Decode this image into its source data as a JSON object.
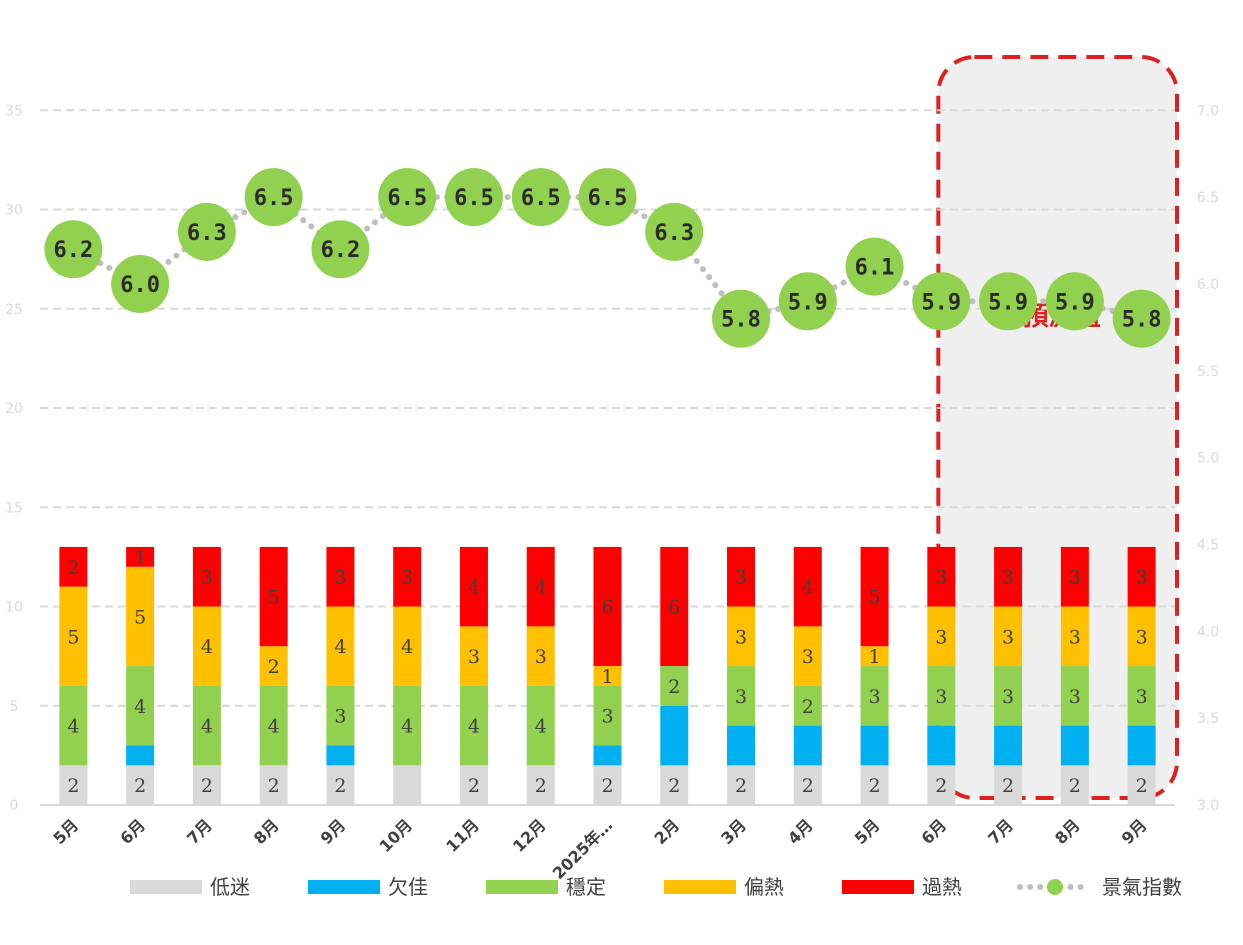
{
  "chart_data": {
    "type": "bar",
    "categories": [
      "5月",
      "6月",
      "7月",
      "8月",
      "9月",
      "10月",
      "11月",
      "12月",
      "2025年…",
      "2月",
      "3月",
      "4月",
      "5月",
      "6月",
      "7月",
      "8月",
      "9月"
    ],
    "left_axis": {
      "ylim": [
        0,
        35
      ],
      "ticks": [
        "0",
        "5",
        "10",
        "15",
        "20",
        "25",
        "30",
        "35"
      ]
    },
    "right_axis": {
      "ylim": [
        3.0,
        7.0
      ],
      "ticks": [
        "3.0",
        "3.5",
        "4.0",
        "4.5",
        "5.0",
        "5.5",
        "6.0",
        "6.5",
        "7.0"
      ]
    },
    "series": [
      {
        "name": "低迷",
        "color": "#d9d9d9",
        "values": [
          2,
          2,
          2,
          2,
          2,
          2,
          2,
          2,
          2,
          2,
          2,
          2,
          2,
          2,
          2,
          2,
          2
        ],
        "labels": [
          "2",
          "2",
          "2",
          "2",
          "2",
          "",
          "2",
          "2",
          "2",
          "2",
          "2",
          "2",
          "2",
          "2",
          "2",
          "2",
          "2"
        ]
      },
      {
        "name": "欠佳",
        "color": "#00b0f0",
        "values": [
          0,
          1,
          0,
          0,
          1,
          0,
          0,
          0,
          1,
          3,
          2,
          2,
          2,
          2,
          2,
          2,
          2
        ],
        "labels": [
          "",
          "",
          "",
          "",
          "",
          "",
          "",
          "",
          "",
          "",
          "",
          "",
          "",
          "",
          "",
          "",
          ""
        ]
      },
      {
        "name": "穩定",
        "color": "#92d050",
        "values": [
          4,
          4,
          4,
          4,
          3,
          4,
          4,
          4,
          3,
          2,
          3,
          2,
          3,
          3,
          3,
          3,
          3
        ],
        "labels": [
          "4",
          "4",
          "4",
          "4",
          "3",
          "4",
          "4",
          "4",
          "3",
          "2",
          "3",
          "2",
          "3",
          "3",
          "3",
          "3",
          "3"
        ]
      },
      {
        "name": "偏熱",
        "color": "#ffc000",
        "values": [
          5,
          5,
          4,
          2,
          4,
          4,
          3,
          3,
          1,
          0,
          3,
          3,
          1,
          3,
          3,
          3,
          3
        ],
        "labels": [
          "5",
          "5",
          "4",
          "2",
          "4",
          "4",
          "3",
          "3",
          "1",
          "0",
          "3",
          "3",
          "1",
          "3",
          "3",
          "3",
          "3"
        ]
      },
      {
        "name": "過熱",
        "color": "#ff0000",
        "values": [
          2,
          1,
          3,
          5,
          3,
          3,
          4,
          4,
          6,
          6,
          3,
          4,
          5,
          3,
          3,
          3,
          3
        ],
        "labels": [
          "2",
          "1",
          "3",
          "5",
          "3",
          "3",
          "4",
          "4",
          "6",
          "6",
          "3",
          "4",
          "5",
          "3",
          "3",
          "3",
          "3"
        ]
      }
    ],
    "line": {
      "name": "景氣指數",
      "color": "#92d050",
      "values": [
        6.2,
        6.0,
        6.3,
        6.5,
        6.2,
        6.5,
        6.5,
        6.5,
        6.5,
        6.3,
        5.8,
        5.9,
        6.1,
        5.9,
        5.9,
        5.9,
        5.8
      ],
      "labels": [
        "6.2",
        "6.0",
        "6.3",
        "6.5",
        "6.2",
        "6.5",
        "6.5",
        "6.5",
        "6.5",
        "6.3",
        "5.8",
        "5.9",
        "6.1",
        "5.9",
        "5.9",
        "5.9",
        "5.8"
      ]
    },
    "forecast": {
      "label": "預測值",
      "from_category": "6月",
      "to_category": "9月",
      "border_color": "#e02020",
      "fill_color": "#efefef"
    },
    "grid": true,
    "legend_position": "bottom"
  }
}
